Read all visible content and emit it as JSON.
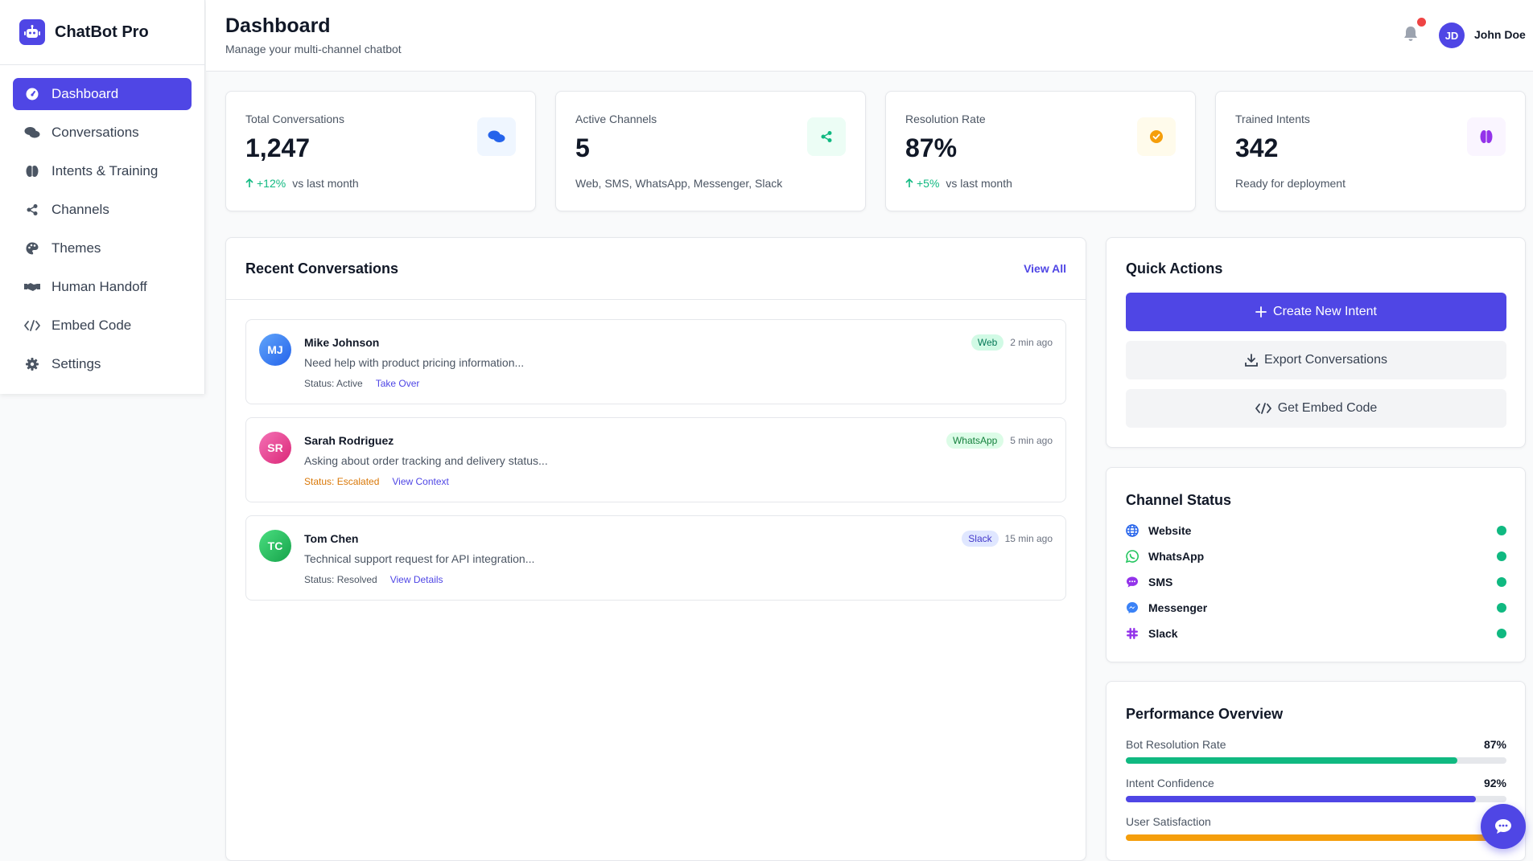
{
  "brand": {
    "name": "ChatBot Pro",
    "icon": "robot-icon"
  },
  "sidebar": {
    "items": [
      {
        "label": "Dashboard",
        "icon": "gauge-icon"
      },
      {
        "label": "Conversations",
        "icon": "comments-icon"
      },
      {
        "label": "Intents & Training",
        "icon": "brain-icon"
      },
      {
        "label": "Channels",
        "icon": "share-icon"
      },
      {
        "label": "Themes",
        "icon": "palette-icon"
      },
      {
        "label": "Human Handoff",
        "icon": "handshake-icon"
      },
      {
        "label": "Embed Code",
        "icon": "code-icon"
      },
      {
        "label": "Settings",
        "icon": "gear-icon"
      }
    ]
  },
  "header": {
    "title": "Dashboard",
    "subtitle": "Manage your multi-channel chatbot",
    "user": {
      "initials": "JD",
      "name": "John Doe"
    }
  },
  "stats": [
    {
      "label": "Total Conversations",
      "value": "1,247",
      "change": "+12%",
      "note": "vs last month",
      "icon": "comments-icon",
      "color": "#2563eb",
      "bg": "#eff6ff"
    },
    {
      "label": "Active Channels",
      "value": "5",
      "change": "",
      "note": "Web, SMS, WhatsApp, Messenger, Slack",
      "icon": "share-icon",
      "color": "#10b981",
      "bg": "#ecfdf5"
    },
    {
      "label": "Resolution Rate",
      "value": "87%",
      "change": "+5%",
      "note": "vs last month",
      "icon": "check-circle-icon",
      "color": "#f59e0b",
      "bg": "#fffbeb"
    },
    {
      "label": "Trained Intents",
      "value": "342",
      "change": "",
      "note": "Ready for deployment",
      "icon": "brain-icon",
      "color": "#9333ea",
      "bg": "#faf5ff"
    }
  ],
  "recent": {
    "title": "Recent Conversations",
    "view_all": "View All",
    "items": [
      {
        "initials": "MJ",
        "name": "Mike Johnson",
        "message": "Need help with product pricing information...",
        "status": "Status: Active",
        "action": "Take Over",
        "channel": "Web",
        "time": "2 min ago",
        "avatar_color": "#3b82f6",
        "badge_bg": "#d1fae5",
        "badge_fg": "#047857",
        "status_color": "#4b5563"
      },
      {
        "initials": "SR",
        "name": "Sarah Rodriguez",
        "message": "Asking about order tracking and delivery status...",
        "status": "Status: Escalated",
        "action": "View Context",
        "channel": "WhatsApp",
        "time": "5 min ago",
        "avatar_color": "#ec4899",
        "badge_bg": "#dcfce7",
        "badge_fg": "#15803d",
        "status_color": "#d97706"
      },
      {
        "initials": "TC",
        "name": "Tom Chen",
        "message": "Technical support request for API integration...",
        "status": "Status: Resolved",
        "action": "View Details",
        "channel": "Slack",
        "time": "15 min ago",
        "avatar_color": "#22c55e",
        "badge_bg": "#e0e7ff",
        "badge_fg": "#4338ca",
        "status_color": "#4b5563"
      }
    ]
  },
  "quick_actions": {
    "title": "Quick Actions",
    "buttons": [
      {
        "label": "Create New Intent",
        "icon": "plus-icon"
      },
      {
        "label": "Export Conversations",
        "icon": "download-icon"
      },
      {
        "label": "Get Embed Code",
        "icon": "code-icon"
      }
    ]
  },
  "channel_status": {
    "title": "Channel Status",
    "items": [
      {
        "label": "Website",
        "icon": "globe-icon",
        "color": "#2563eb"
      },
      {
        "label": "WhatsApp",
        "icon": "whatsapp-icon",
        "color": "#22c55e"
      },
      {
        "label": "SMS",
        "icon": "sms-icon",
        "color": "#9333ea"
      },
      {
        "label": "Messenger",
        "icon": "messenger-icon",
        "color": "#3b82f6"
      },
      {
        "label": "Slack",
        "icon": "slack-icon",
        "color": "#9333ea"
      }
    ]
  },
  "performance": {
    "title": "Performance Overview",
    "items": [
      {
        "label": "Bot Resolution Rate",
        "value": "87%",
        "fill": 0.87,
        "color": "#10b981"
      },
      {
        "label": "Intent Confidence",
        "value": "92%",
        "fill": 0.92,
        "color": "#4f46e5"
      },
      {
        "label": "User Satisfaction",
        "value": "",
        "fill": 0.96,
        "color": "#f59e0b"
      }
    ]
  }
}
